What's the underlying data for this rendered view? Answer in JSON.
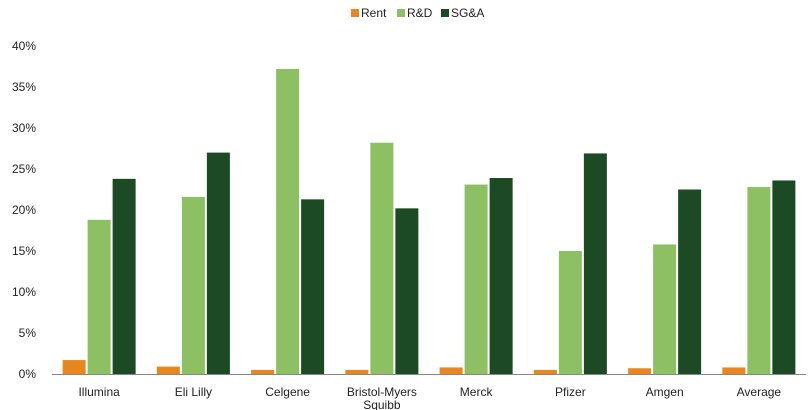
{
  "chart_data": {
    "type": "bar",
    "categories": [
      "Illumina",
      "Eli Lilly",
      "Celgene",
      "Bristol-Myers Squibb",
      "Merck",
      "Pfizer",
      "Amgen",
      "Average"
    ],
    "category_label_lines": [
      [
        "Illumina"
      ],
      [
        "Eli Lilly"
      ],
      [
        "Celgene"
      ],
      [
        "Bristol-Myers",
        "Squibb"
      ],
      [
        "Merck"
      ],
      [
        "Pfizer"
      ],
      [
        "Amgen"
      ],
      [
        "Average"
      ]
    ],
    "series": [
      {
        "name": "Rent",
        "color": "#e8861f",
        "values": [
          1.7,
          0.9,
          0.5,
          0.5,
          0.8,
          0.5,
          0.7,
          0.8
        ]
      },
      {
        "name": "R&D",
        "color": "#8cc063",
        "values": [
          18.8,
          21.6,
          37.2,
          28.2,
          23.1,
          15.0,
          15.8,
          22.8
        ]
      },
      {
        "name": "SG&A",
        "color": "#1b4a25",
        "values": [
          23.8,
          27.0,
          21.3,
          20.2,
          23.9,
          26.9,
          22.5,
          23.6
        ]
      }
    ],
    "ylim": [
      0,
      40
    ],
    "yticks": [
      0,
      5,
      10,
      15,
      20,
      25,
      30,
      35,
      40
    ],
    "ytick_labels": [
      "0%",
      "5%",
      "10%",
      "15%",
      "20%",
      "25%",
      "30%",
      "35%",
      "40%"
    ],
    "title": "",
    "xlabel": "",
    "ylabel": "",
    "grid": false,
    "legend_position": "top-center"
  }
}
